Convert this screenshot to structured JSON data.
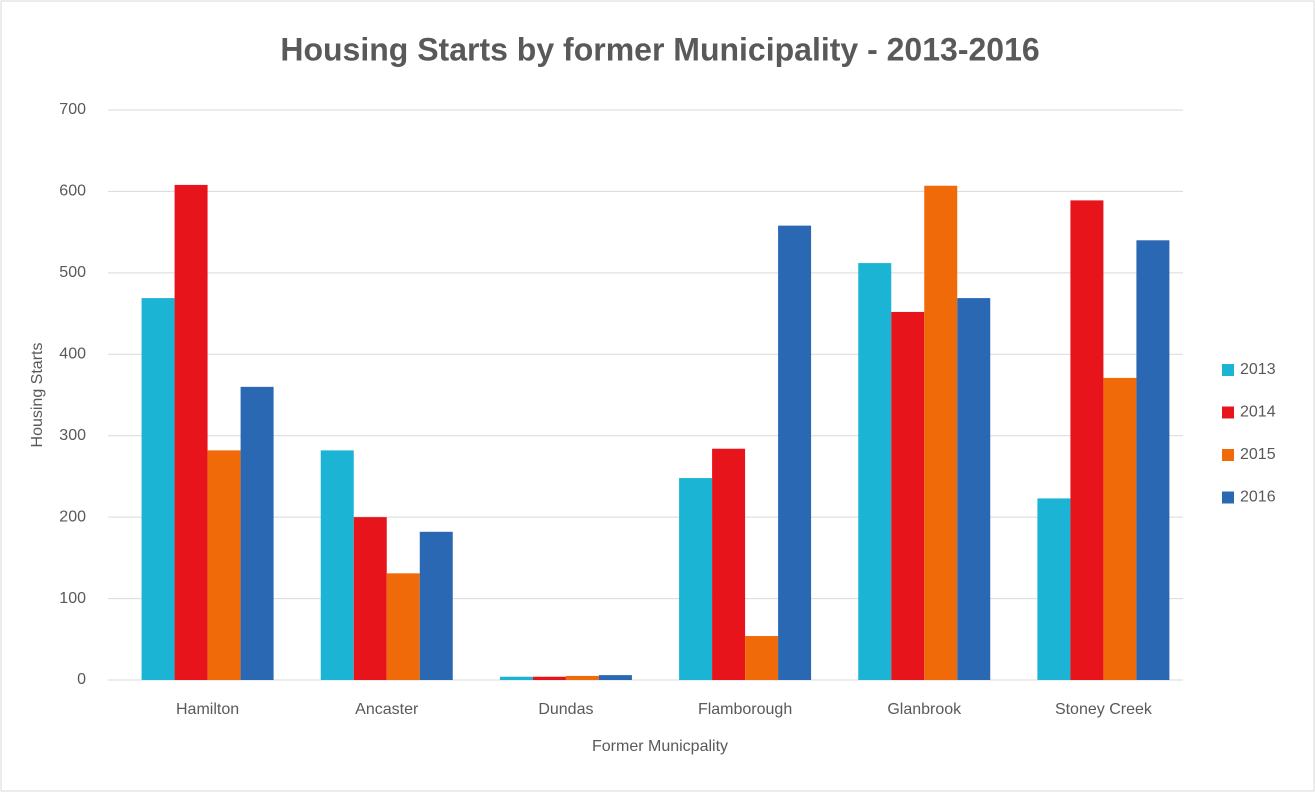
{
  "chart_data": {
    "type": "bar",
    "title": "Housing Starts by former Municipality - 2013-2016",
    "xlabel": "Former Municpality",
    "ylabel": "Housing Starts",
    "categories": [
      "Hamilton",
      "Ancaster",
      "Dundas",
      "Flamborough",
      "Glanbrook",
      "Stoney Creek"
    ],
    "series": [
      {
        "name": "2013",
        "color": "#1cb4d4",
        "values": [
          469,
          282,
          4,
          248,
          512,
          223
        ]
      },
      {
        "name": "2014",
        "color": "#e8141c",
        "values": [
          608,
          200,
          4,
          284,
          452,
          589
        ]
      },
      {
        "name": "2015",
        "color": "#f06a0a",
        "values": [
          282,
          131,
          5,
          54,
          607,
          371
        ]
      },
      {
        "name": "2016",
        "color": "#2a68b4",
        "values": [
          360,
          182,
          6,
          558,
          469,
          540
        ]
      }
    ],
    "ylim": [
      0,
      700
    ],
    "yticks": [
      0,
      100,
      200,
      300,
      400,
      500,
      600,
      700
    ],
    "grid": true,
    "legend": "right"
  }
}
